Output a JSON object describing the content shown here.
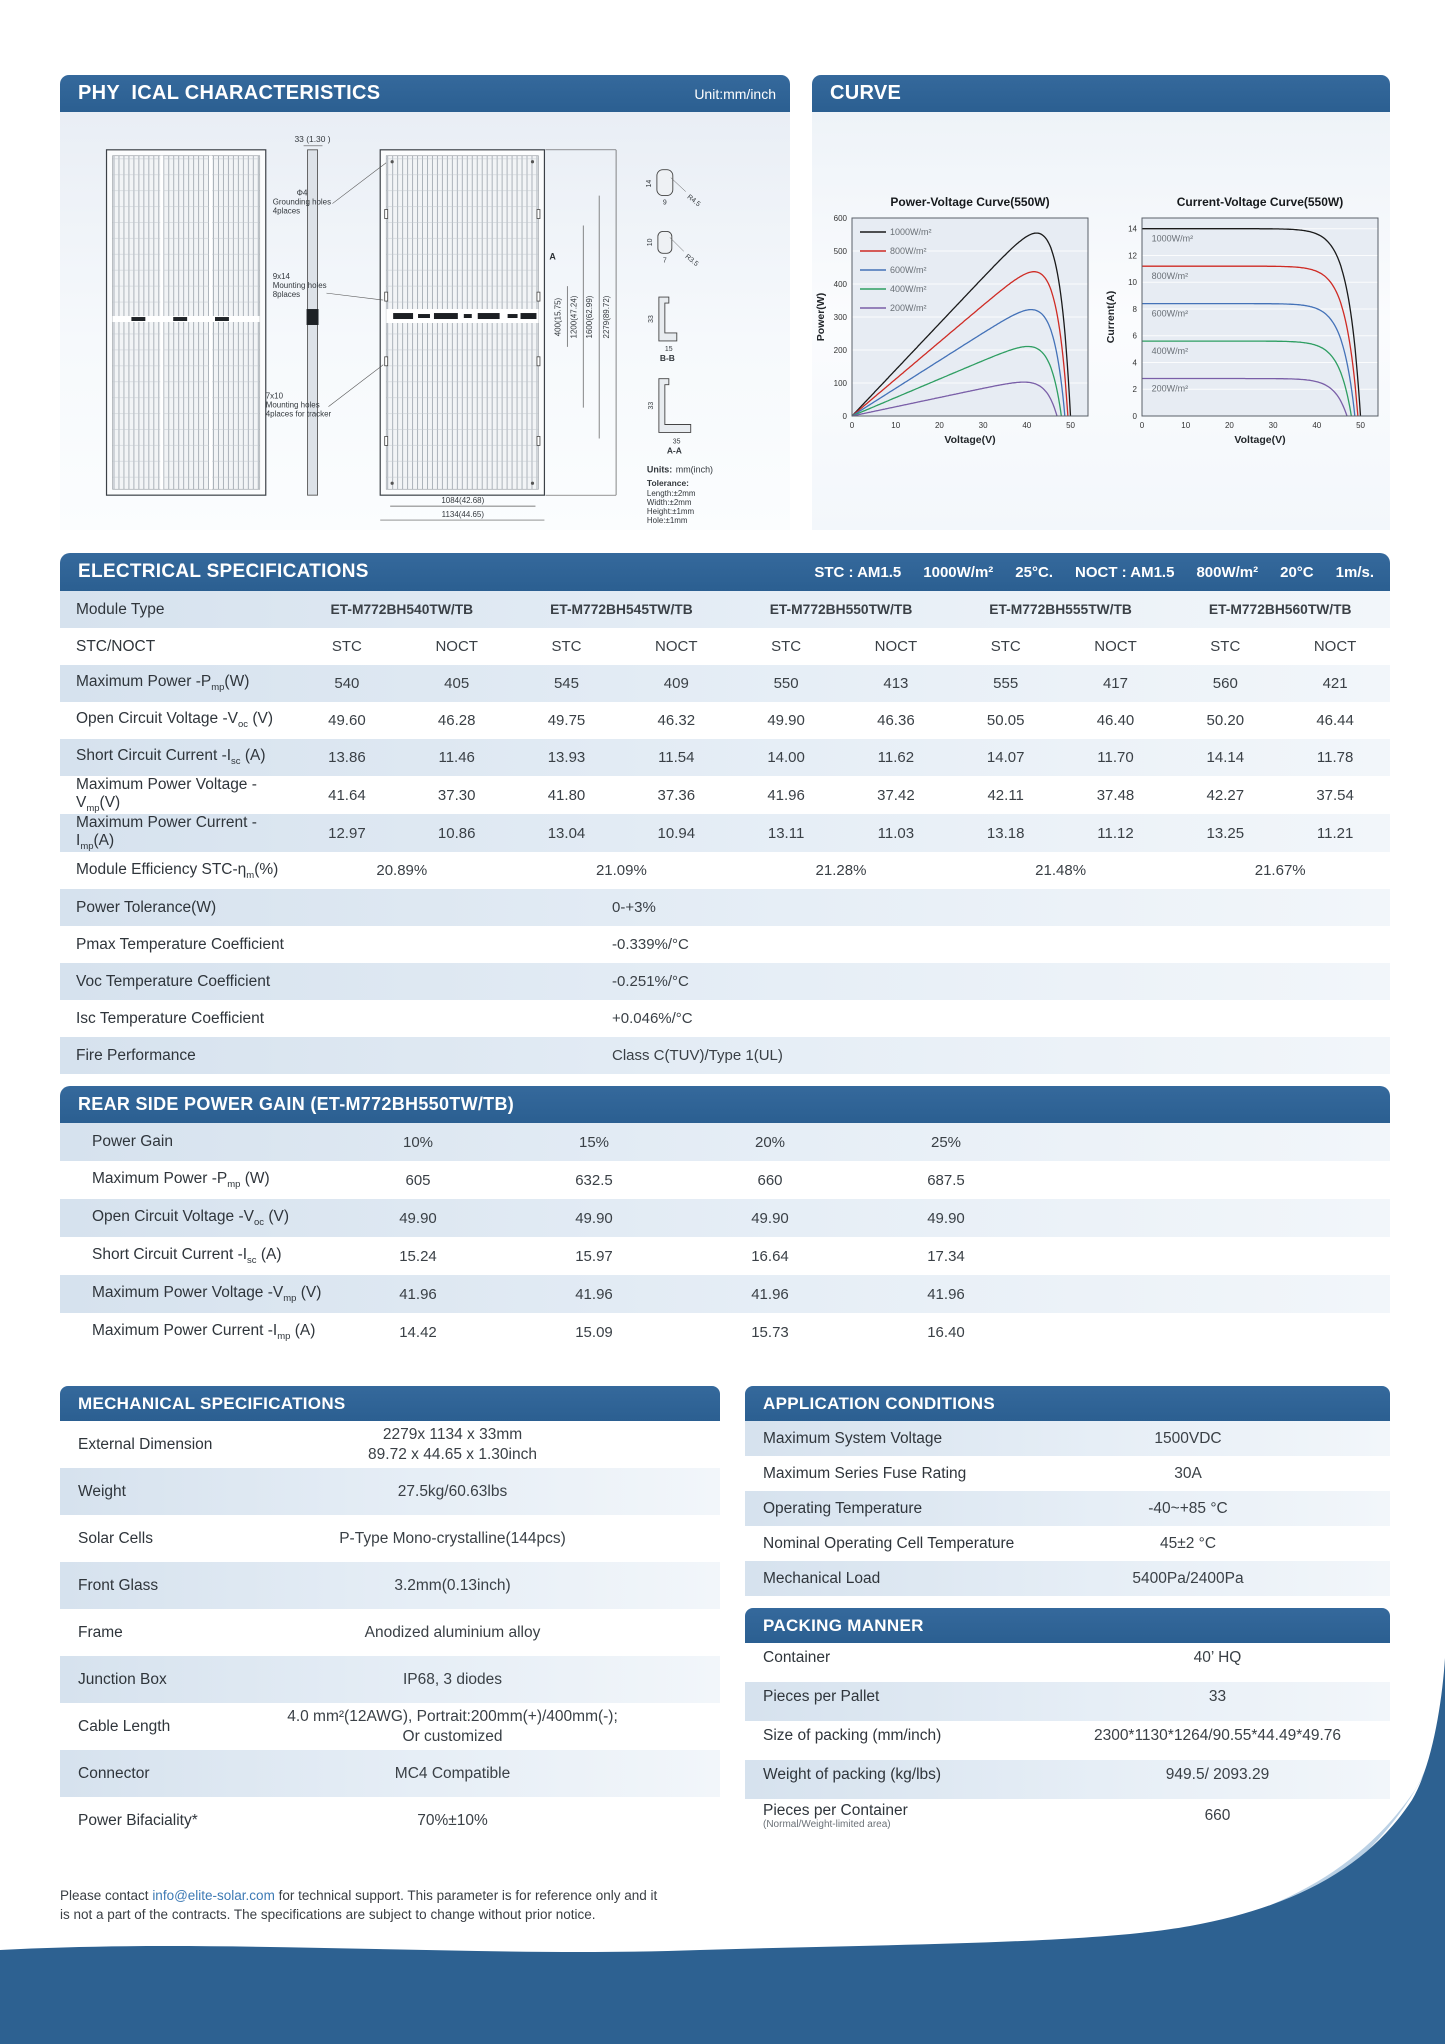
{
  "physical": {
    "title": "PHY  ICAL CHARACTERISTICS",
    "unit_note": "Unit:mm/inch",
    "drawing": {
      "side_width_dim": "33 (1.30 )",
      "grounding_dia": "Φ4",
      "grounding_l1": "Grounding holes",
      "grounding_l2": "4places",
      "mount1_size": "9x14",
      "mount1_l1": "Mounting holes",
      "mount1_l2": "8places",
      "mount2_size": "7x10",
      "mount2_l1": "Mounting holes",
      "mount2_l2": "4places for tracker",
      "section_a": "A",
      "dim_400": "400(15.75)",
      "dim_1200": "1200(47.24)",
      "dim_1600": "1600(62.99)",
      "dim_2279": "2279(89.72)",
      "dim_1084": "1084(42.68)",
      "dim_1134": "1134(44.65)",
      "detail1_h": "14",
      "detail1_w": "9",
      "detail1_r": "R4.5",
      "detail2_h": "10",
      "detail2_w": "7",
      "detail2_r": "R3.5",
      "bb_h": "33",
      "bb_w": "15",
      "bb_label": "B-B",
      "aa_h": "33",
      "aa_w": "35",
      "aa_label": "A-A",
      "units_label": "Units:",
      "units_value": "mm(inch)",
      "tol_title": "Tolerance:",
      "tol_lines": [
        "Length:±2mm",
        "Width:±2mm",
        "Height:±1mm",
        "Hole:±1mm"
      ]
    }
  },
  "curve": {
    "title": "CURVE"
  },
  "chart_data": [
    {
      "type": "line",
      "curve_kind": "power",
      "title": "Power-Voltage Curve(550W)",
      "xlabel": "Voltage(V)",
      "ylabel": "Power(W)",
      "xlim": [
        0,
        54
      ],
      "ylim": [
        0,
        600
      ],
      "xticks": [
        0,
        10,
        20,
        30,
        40,
        50
      ],
      "yticks": [
        0,
        100,
        200,
        300,
        400,
        500,
        600
      ],
      "grid": "horizontal",
      "legend_position": "top-left",
      "series": [
        {
          "name": "1000W/m²",
          "color": "#1a1a1a",
          "isc": 14.0,
          "voc": 50.0,
          "pmax": 550
        },
        {
          "name": "800W/m²",
          "color": "#cf2b24",
          "isc": 11.2,
          "voc": 49.4,
          "pmax": 440
        },
        {
          "name": "600W/m²",
          "color": "#4472b8",
          "isc": 8.4,
          "voc": 48.7,
          "pmax": 330
        },
        {
          "name": "400W/m²",
          "color": "#2e9e62",
          "isc": 5.6,
          "voc": 47.9,
          "pmax": 218
        },
        {
          "name": "200W/m²",
          "color": "#7a5fa8",
          "isc": 2.8,
          "voc": 46.9,
          "pmax": 106
        }
      ]
    },
    {
      "type": "line",
      "curve_kind": "current",
      "title": "Current-Voltage Curve(550W)",
      "xlabel": "Voltage(V)",
      "ylabel": "Current(A)",
      "xlim": [
        0,
        54
      ],
      "ylim": [
        0,
        14.8
      ],
      "xticks": [
        0,
        10,
        20,
        30,
        40,
        50
      ],
      "yticks": [
        0,
        2,
        4,
        6,
        8,
        10,
        12,
        14
      ],
      "grid": "horizontal",
      "legend_position": "on-curve",
      "series": [
        {
          "name": "1000W/m²",
          "color": "#1a1a1a",
          "isc": 14.0,
          "voc": 50.0
        },
        {
          "name": "800W/m²",
          "color": "#cf2b24",
          "isc": 11.2,
          "voc": 49.4
        },
        {
          "name": "600W/m²",
          "color": "#4472b8",
          "isc": 8.4,
          "voc": 48.7
        },
        {
          "name": "400W/m²",
          "color": "#2e9e62",
          "isc": 5.6,
          "voc": 47.9
        },
        {
          "name": "200W/m²",
          "color": "#7a5fa8",
          "isc": 2.8,
          "voc": 46.9
        }
      ]
    }
  ],
  "electrical": {
    "title": "ELECTRICAL SPECIFICATIONS",
    "conditions": [
      "STC : AM1.5",
      "1000W/m²",
      "25°C.",
      "NOCT : AM1.5",
      "800W/m²",
      "20°C",
      "1m/s."
    ],
    "module_type_label": "Module Type",
    "models": [
      "ET-M772BH540TW/TB",
      "ET-M772BH545TW/TB",
      "ET-M772BH550TW/TB",
      "ET-M772BH555TW/TB",
      "ET-M772BH560TW/TB"
    ],
    "stc_noct_label": "STC/NOCT",
    "col_headers": [
      "STC",
      "NOCT"
    ],
    "rows": [
      {
        "label": "Maximum Power -P~mp~(W)",
        "values": [
          "540",
          "405",
          "545",
          "409",
          "550",
          "413",
          "555",
          "417",
          "560",
          "421"
        ]
      },
      {
        "label": "Open Circuit Voltage -V~oc~ (V)",
        "values": [
          "49.60",
          "46.28",
          "49.75",
          "46.32",
          "49.90",
          "46.36",
          "50.05",
          "46.40",
          "50.20",
          "46.44"
        ]
      },
      {
        "label": "Short Circuit Current -I~sc~ (A)",
        "values": [
          "13.86",
          "11.46",
          "13.93",
          "11.54",
          "14.00",
          "11.62",
          "14.07",
          "11.70",
          "14.14",
          "11.78"
        ]
      },
      {
        "label": "Maximum Power Voltage -V~mp~(V)",
        "values": [
          "41.64",
          "37.30",
          "41.80",
          "37.36",
          "41.96",
          "37.42",
          "42.11",
          "37.48",
          "42.27",
          "37.54"
        ]
      },
      {
        "label": "Maximum Power Current -I~mp~(A)",
        "values": [
          "12.97",
          "10.86",
          "13.04",
          "10.94",
          "13.11",
          "11.03",
          "13.18",
          "11.12",
          "13.25",
          "11.21"
        ]
      }
    ],
    "efficiency_row": {
      "label": "Module Efficiency STC-η~m~(%)",
      "values": [
        "20.89%",
        "21.09%",
        "21.28%",
        "21.48%",
        "21.67%"
      ]
    },
    "single_rows": [
      {
        "label": "Power Tolerance(W)",
        "value": "0-+3%"
      },
      {
        "label": "Pmax Temperature Coefficient",
        "value": "-0.339%/°C"
      },
      {
        "label": "Voc Temperature Coefficient",
        "value": "-0.251%/°C"
      },
      {
        "label": "Isc Temperature Coefficient",
        "value": "+0.046%/°C"
      },
      {
        "label": "Fire Performance",
        "value": "Class C(TUV)/Type 1(UL)"
      }
    ]
  },
  "rear_gain": {
    "title": "REAR SIDE POWER GAIN (ET-M772BH550TW/TB)",
    "rows": [
      {
        "label": "Power Gain",
        "values": [
          "10%",
          "15%",
          "20%",
          "25%"
        ]
      },
      {
        "label": "Maximum Power -P~mp~ (W)",
        "values": [
          "605",
          "632.5",
          "660",
          "687.5"
        ]
      },
      {
        "label": "Open Circuit Voltage -V~oc~ (V)",
        "values": [
          "49.90",
          "49.90",
          "49.90",
          "49.90"
        ]
      },
      {
        "label": "Short Circuit Current -I~sc~ (A)",
        "values": [
          "15.24",
          "15.97",
          "16.64",
          "17.34"
        ]
      },
      {
        "label": "Maximum Power Voltage -V~mp~ (V)",
        "values": [
          "41.96",
          "41.96",
          "41.96",
          "41.96"
        ]
      },
      {
        "label": "Maximum Power Current -I~mp~ (A)",
        "values": [
          "14.42",
          "15.09",
          "15.73",
          "16.40"
        ]
      }
    ]
  },
  "mechanical": {
    "title": "MECHANICAL SPECIFICATIONS",
    "rows": [
      {
        "label": "External Dimension",
        "value": "2279x 1134 x 33mm",
        "value2": "89.72 x 44.65 x 1.30inch"
      },
      {
        "label": "Weight",
        "value": "27.5kg/60.63lbs"
      },
      {
        "label": "Solar Cells",
        "value": "P-Type Mono-crystalline(144pcs)"
      },
      {
        "label": "Front Glass",
        "value": "3.2mm(0.13inch)"
      },
      {
        "label": "Frame",
        "value": "Anodized aluminium alloy"
      },
      {
        "label": "Junction Box",
        "value": "IP68, 3 diodes"
      },
      {
        "label": "Cable Length",
        "value": "4.0 mm²(12AWG), Portrait:200mm(+)/400mm(-);",
        "value2": "Or customized"
      },
      {
        "label": "Connector",
        "value": "MC4 Compatible"
      },
      {
        "label": "Power Bifaciality*",
        "value": "70%±10%"
      }
    ]
  },
  "application": {
    "title": "APPLICATION CONDITIONS",
    "rows": [
      {
        "label": "Maximum System Voltage",
        "value": "1500VDC"
      },
      {
        "label": "Maximum Series Fuse Rating",
        "value": "30A"
      },
      {
        "label": "Operating Temperature",
        "value": "-40~+85 °C"
      },
      {
        "label": "Nominal Operating Cell Temperature",
        "value": "45±2 °C"
      },
      {
        "label": "Mechanical Load",
        "value": "5400Pa/2400Pa"
      }
    ]
  },
  "packing": {
    "title": "PACKING MANNER",
    "rows": [
      {
        "label": "Container",
        "value": "40’ HQ"
      },
      {
        "label": "Pieces per Pallet",
        "value": "33"
      },
      {
        "label": "Size of packing (mm/inch)",
        "value": "2300*1130*1264/90.55*44.49*49.76"
      },
      {
        "label": "Weight of packing (kg/lbs)",
        "value": "949.5/ 2093.29"
      },
      {
        "label": "Pieces per Container",
        "sublabel": "(Normal/Weight-limited area)",
        "value": "660"
      }
    ]
  },
  "footer": {
    "pre": "Please contact ",
    "email": "info@elite-solar.com",
    "post": " for technical support. This parameter is for reference only and it is not a part of the contracts. The specifications are subject to change without prior notice."
  },
  "colors": {
    "header_blue": "#2e6496",
    "stripe_blue": "#d9e5f1",
    "wave_blue": "#2d6191"
  }
}
